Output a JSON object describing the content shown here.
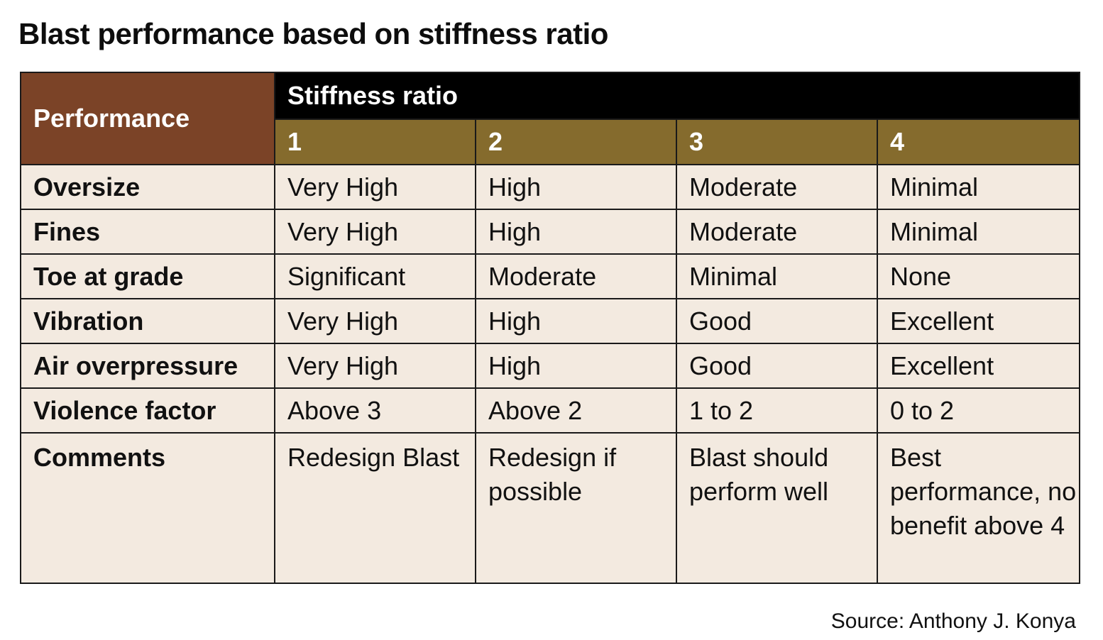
{
  "title": "Blast performance based on stiffness ratio",
  "source": "Source: Anthony J. Konya",
  "colors": {
    "corner_header": "#7b4327",
    "group_header": "#000000",
    "ratio_header": "#856b2d",
    "body_background": "#f3eae0"
  },
  "chart_data": {
    "type": "table",
    "corner_header": "Performance",
    "group_header": "Stiffness ratio",
    "columns": [
      "1",
      "2",
      "3",
      "4"
    ],
    "rows": [
      {
        "label": "Oversize",
        "values": [
          "Very High",
          "High",
          "Moderate",
          "Minimal"
        ]
      },
      {
        "label": "Fines",
        "values": [
          "Very High",
          "High",
          "Moderate",
          "Minimal"
        ]
      },
      {
        "label": "Toe at grade",
        "values": [
          "Significant",
          "Moderate",
          "Minimal",
          "None"
        ]
      },
      {
        "label": "Vibration",
        "values": [
          "Very High",
          "High",
          "Good",
          "Excellent"
        ]
      },
      {
        "label": "Air overpressure",
        "values": [
          "Very High",
          "High",
          "Good",
          "Excellent"
        ]
      },
      {
        "label": "Violence factor",
        "values": [
          "Above 3",
          "Above 2",
          "1 to 2",
          "0 to 2"
        ]
      },
      {
        "label": "Comments",
        "values": [
          "Redesign Blast",
          "Redesign if possible",
          "Blast should perform well",
          "Best performance, no benefit above 4"
        ]
      }
    ]
  }
}
